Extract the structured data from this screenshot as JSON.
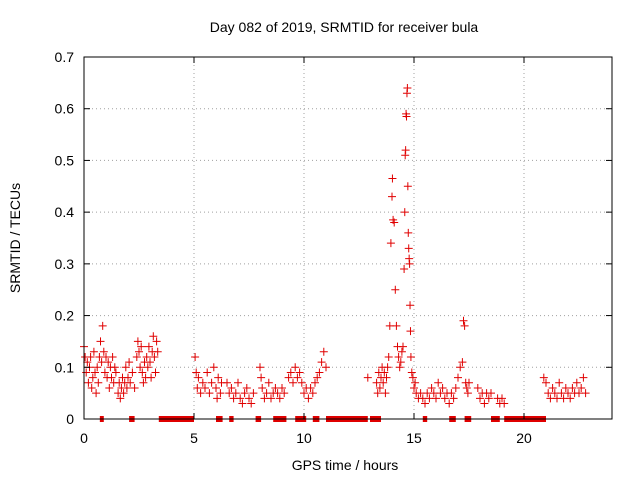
{
  "chart_data": {
    "type": "scatter",
    "title": "Day 082 of 2019, SRMTID for receiver bula",
    "xlabel": "GPS time / hours",
    "ylabel": "SRMTID / TECUs",
    "xlim": [
      0,
      24
    ],
    "ylim": [
      0,
      0.7
    ],
    "x_ticks": [
      "0",
      "5",
      "10",
      "15",
      "20"
    ],
    "y_ticks": [
      "0",
      "0.1",
      "0.2",
      "0.3",
      "0.4",
      "0.5",
      "0.6",
      "0.7"
    ],
    "grid": true,
    "marker": "plus",
    "series": [
      {
        "name": "SRMTID",
        "color": "#e00000",
        "points": [
          [
            0.0,
            0.14
          ],
          [
            0.05,
            0.12
          ],
          [
            0.1,
            0.09
          ],
          [
            0.15,
            0.11
          ],
          [
            0.2,
            0.07
          ],
          [
            0.25,
            0.1
          ],
          [
            0.3,
            0.12
          ],
          [
            0.35,
            0.06
          ],
          [
            0.4,
            0.08
          ],
          [
            0.45,
            0.13
          ],
          [
            0.5,
            0.09
          ],
          [
            0.55,
            0.05
          ],
          [
            0.6,
            0.1
          ],
          [
            0.65,
            0.07
          ],
          [
            0.7,
            0.12
          ],
          [
            0.75,
            0.15
          ],
          [
            0.8,
            0.11
          ],
          [
            0.85,
            0.18
          ],
          [
            0.9,
            0.13
          ],
          [
            0.95,
            0.09
          ],
          [
            1.0,
            0.12
          ],
          [
            1.05,
            0.08
          ],
          [
            1.1,
            0.11
          ],
          [
            1.15,
            0.06
          ],
          [
            1.2,
            0.1
          ],
          [
            1.25,
            0.08
          ],
          [
            1.3,
            0.12
          ],
          [
            1.35,
            0.07
          ],
          [
            1.4,
            0.1
          ],
          [
            1.45,
            0.09
          ],
          [
            1.55,
            0.05
          ],
          [
            1.6,
            0.07
          ],
          [
            1.65,
            0.04
          ],
          [
            1.7,
            0.06
          ],
          [
            1.75,
            0.08
          ],
          [
            1.8,
            0.05
          ],
          [
            1.85,
            0.07
          ],
          [
            1.9,
            0.1
          ],
          [
            1.95,
            0.06
          ],
          [
            2.0,
            0.08
          ],
          [
            2.05,
            0.11
          ],
          [
            2.1,
            0.07
          ],
          [
            2.2,
            0.09
          ],
          [
            2.3,
            0.06
          ],
          [
            2.4,
            0.12
          ],
          [
            2.45,
            0.15
          ],
          [
            2.5,
            0.13
          ],
          [
            2.55,
            0.1
          ],
          [
            2.6,
            0.14
          ],
          [
            2.65,
            0.09
          ],
          [
            2.7,
            0.07
          ],
          [
            2.75,
            0.11
          ],
          [
            2.8,
            0.08
          ],
          [
            2.85,
            0.12
          ],
          [
            2.9,
            0.1
          ],
          [
            2.95,
            0.14
          ],
          [
            3.0,
            0.11
          ],
          [
            3.05,
            0.08
          ],
          [
            3.1,
            0.13
          ],
          [
            3.15,
            0.16
          ],
          [
            3.2,
            0.12
          ],
          [
            3.25,
            0.09
          ],
          [
            3.3,
            0.15
          ],
          [
            3.35,
            0.13
          ],
          [
            5.05,
            0.12
          ],
          [
            5.1,
            0.09
          ],
          [
            5.15,
            0.06
          ],
          [
            5.2,
            0.08
          ],
          [
            5.3,
            0.05
          ],
          [
            5.4,
            0.07
          ],
          [
            5.5,
            0.06
          ],
          [
            5.6,
            0.09
          ],
          [
            5.7,
            0.05
          ],
          [
            5.8,
            0.07
          ],
          [
            5.9,
            0.1
          ],
          [
            6.0,
            0.06
          ],
          [
            6.05,
            0.04
          ],
          [
            6.1,
            0.08
          ],
          [
            6.2,
            0.05
          ],
          [
            6.25,
            0.07
          ],
          [
            6.5,
            0.07
          ],
          [
            6.6,
            0.05
          ],
          [
            6.7,
            0.06
          ],
          [
            6.8,
            0.04
          ],
          [
            6.9,
            0.05
          ],
          [
            7.0,
            0.07
          ],
          [
            7.1,
            0.04
          ],
          [
            7.2,
            0.03
          ],
          [
            7.3,
            0.05
          ],
          [
            7.4,
            0.06
          ],
          [
            7.5,
            0.04
          ],
          [
            7.6,
            0.03
          ],
          [
            7.7,
            0.05
          ],
          [
            8.0,
            0.1
          ],
          [
            8.05,
            0.08
          ],
          [
            8.1,
            0.06
          ],
          [
            8.2,
            0.04
          ],
          [
            8.3,
            0.05
          ],
          [
            8.4,
            0.07
          ],
          [
            8.5,
            0.04
          ],
          [
            8.6,
            0.05
          ],
          [
            8.7,
            0.06
          ],
          [
            8.8,
            0.05
          ],
          [
            8.9,
            0.04
          ],
          [
            9.0,
            0.06
          ],
          [
            9.1,
            0.05
          ],
          [
            9.3,
            0.08
          ],
          [
            9.4,
            0.09
          ],
          [
            9.5,
            0.07
          ],
          [
            9.6,
            0.1
          ],
          [
            9.7,
            0.08
          ],
          [
            9.8,
            0.09
          ],
          [
            9.9,
            0.07
          ],
          [
            10.0,
            0.05
          ],
          [
            10.1,
            0.06
          ],
          [
            10.2,
            0.04
          ],
          [
            10.3,
            0.06
          ],
          [
            10.4,
            0.05
          ],
          [
            10.5,
            0.07
          ],
          [
            10.6,
            0.08
          ],
          [
            10.7,
            0.09
          ],
          [
            10.8,
            0.11
          ],
          [
            10.9,
            0.13
          ],
          [
            11.0,
            0.1
          ],
          [
            12.9,
            0.08
          ],
          [
            13.3,
            0.07
          ],
          [
            13.35,
            0.05
          ],
          [
            13.4,
            0.09
          ],
          [
            13.45,
            0.06
          ],
          [
            13.5,
            0.08
          ],
          [
            13.55,
            0.1
          ],
          [
            13.6,
            0.07
          ],
          [
            13.65,
            0.09
          ],
          [
            13.7,
            0.05
          ],
          [
            13.75,
            0.08
          ],
          [
            13.8,
            0.1
          ],
          [
            13.85,
            0.12
          ],
          [
            13.9,
            0.18
          ],
          [
            13.95,
            0.34
          ],
          [
            14.0,
            0.43
          ],
          [
            14.02,
            0.465
          ],
          [
            14.05,
            0.385
          ],
          [
            14.1,
            0.38
          ],
          [
            14.15,
            0.25
          ],
          [
            14.2,
            0.18
          ],
          [
            14.25,
            0.14
          ],
          [
            14.3,
            0.12
          ],
          [
            14.35,
            0.1
          ],
          [
            14.4,
            0.11
          ],
          [
            14.45,
            0.13
          ],
          [
            14.5,
            0.14
          ],
          [
            14.55,
            0.29
          ],
          [
            14.58,
            0.4
          ],
          [
            14.6,
            0.51
          ],
          [
            14.62,
            0.52
          ],
          [
            14.64,
            0.59
          ],
          [
            14.66,
            0.585
          ],
          [
            14.68,
            0.63
          ],
          [
            14.7,
            0.64
          ],
          [
            14.72,
            0.45
          ],
          [
            14.74,
            0.36
          ],
          [
            14.76,
            0.33
          ],
          [
            14.78,
            0.31
          ],
          [
            14.8,
            0.3
          ],
          [
            14.82,
            0.22
          ],
          [
            14.84,
            0.17
          ],
          [
            14.86,
            0.12
          ],
          [
            14.9,
            0.09
          ],
          [
            14.95,
            0.08
          ],
          [
            15.0,
            0.06
          ],
          [
            15.05,
            0.07
          ],
          [
            15.1,
            0.05
          ],
          [
            15.2,
            0.04
          ],
          [
            15.3,
            0.05
          ],
          [
            15.4,
            0.04
          ],
          [
            15.5,
            0.03
          ],
          [
            15.6,
            0.05
          ],
          [
            15.7,
            0.04
          ],
          [
            15.8,
            0.06
          ],
          [
            15.9,
            0.05
          ],
          [
            16.0,
            0.04
          ],
          [
            16.1,
            0.07
          ],
          [
            16.2,
            0.05
          ],
          [
            16.3,
            0.06
          ],
          [
            16.4,
            0.04
          ],
          [
            16.5,
            0.05
          ],
          [
            16.6,
            0.03
          ],
          [
            16.7,
            0.05
          ],
          [
            16.8,
            0.04
          ],
          [
            16.9,
            0.06
          ],
          [
            17.0,
            0.08
          ],
          [
            17.1,
            0.1
          ],
          [
            17.2,
            0.11
          ],
          [
            17.25,
            0.19
          ],
          [
            17.3,
            0.18
          ],
          [
            17.35,
            0.07
          ],
          [
            17.4,
            0.06
          ],
          [
            17.45,
            0.05
          ],
          [
            17.5,
            0.07
          ],
          [
            17.9,
            0.06
          ],
          [
            18.0,
            0.04
          ],
          [
            18.1,
            0.05
          ],
          [
            18.2,
            0.03
          ],
          [
            18.3,
            0.05
          ],
          [
            18.4,
            0.04
          ],
          [
            18.5,
            0.05
          ],
          [
            18.8,
            0.04
          ],
          [
            18.9,
            0.03
          ],
          [
            19.0,
            0.04
          ],
          [
            19.1,
            0.03
          ],
          [
            20.9,
            0.08
          ],
          [
            21.0,
            0.07
          ],
          [
            21.1,
            0.05
          ],
          [
            21.2,
            0.04
          ],
          [
            21.3,
            0.06
          ],
          [
            21.4,
            0.05
          ],
          [
            21.5,
            0.04
          ],
          [
            21.6,
            0.07
          ],
          [
            21.7,
            0.05
          ],
          [
            21.8,
            0.04
          ],
          [
            21.9,
            0.06
          ],
          [
            22.0,
            0.05
          ],
          [
            22.1,
            0.04
          ],
          [
            22.2,
            0.06
          ],
          [
            22.3,
            0.05
          ],
          [
            22.4,
            0.07
          ],
          [
            22.5,
            0.05
          ],
          [
            22.6,
            0.06
          ],
          [
            22.7,
            0.08
          ],
          [
            22.8,
            0.05
          ]
        ],
        "zero_segments": [
          [
            0.72,
            0.9
          ],
          [
            2.05,
            2.3
          ],
          [
            3.4,
            5.0
          ],
          [
            6.0,
            6.3
          ],
          [
            6.6,
            6.8
          ],
          [
            7.8,
            8.05
          ],
          [
            8.6,
            9.2
          ],
          [
            9.6,
            10.1
          ],
          [
            10.4,
            10.7
          ],
          [
            11.0,
            12.9
          ],
          [
            13.0,
            13.5
          ],
          [
            15.4,
            15.6
          ],
          [
            16.6,
            16.9
          ],
          [
            17.3,
            17.6
          ],
          [
            18.5,
            18.9
          ],
          [
            19.1,
            21.0
          ]
        ]
      }
    ]
  }
}
